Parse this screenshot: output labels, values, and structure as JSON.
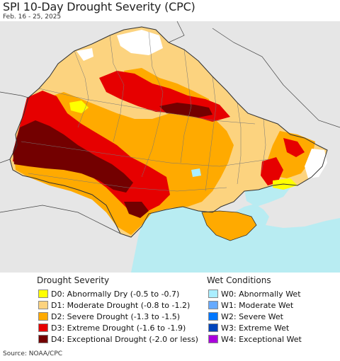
{
  "header": {
    "title": "SPI 10-Day Drought Severity (CPC)",
    "subtitle": "Feb. 16 - 25, 2025"
  },
  "legend": {
    "drought": {
      "heading": "Drought Severity",
      "items": [
        {
          "label": "D0: Abnormally Dry (-0.5 to -0.7)",
          "color": "#ffff00"
        },
        {
          "label": "D1: Moderate Drought (-0.8 to -1.2)",
          "color": "#fcd37f"
        },
        {
          "label": "D2: Severe Drought (-1.3 to -1.5)",
          "color": "#ffaa00"
        },
        {
          "label": "D3: Extreme Drought (-1.6 to -1.9)",
          "color": "#e60000"
        },
        {
          "label": "D4: Exceptional Drought (-2.0 or less)",
          "color": "#730000"
        }
      ]
    },
    "wet": {
      "heading": "Wet Conditions",
      "items": [
        {
          "label": "W0: Abnormally Wet",
          "color": "#aaeeff"
        },
        {
          "label": "W1: Moderate Wet",
          "color": "#66aaff"
        },
        {
          "label": "W2: Severe Wet",
          "color": "#0077ff"
        },
        {
          "label": "W3: Extreme Wet",
          "color": "#0044bb"
        },
        {
          "label": "W4: Exceptional Wet",
          "color": "#aa00dd"
        }
      ]
    }
  },
  "map": {
    "sea_color": "#b8ecf2",
    "land_color": "#e6e6e6"
  },
  "footer": {
    "source": "Source: NOAA/CPC"
  }
}
